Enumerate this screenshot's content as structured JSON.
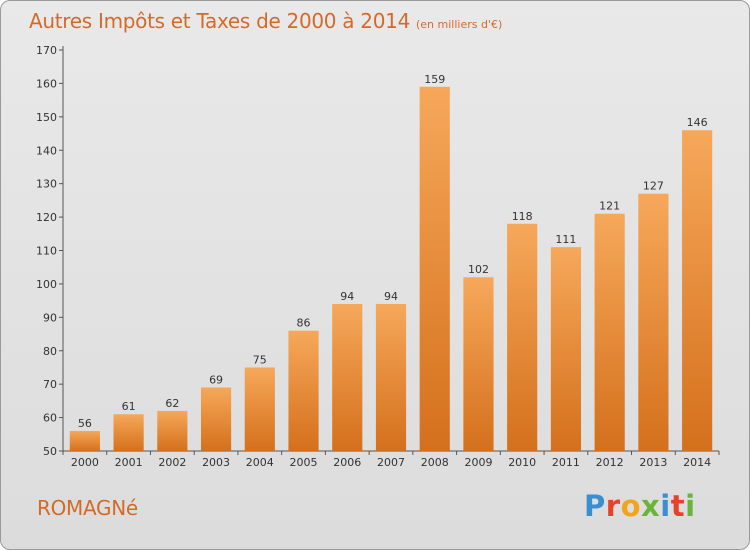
{
  "header": {
    "title": "Autres Impôts et Taxes de 2000 à 2014",
    "unit": "(en milliers d'€)"
  },
  "footer": {
    "commune": "ROMAGNé",
    "logo_letters": [
      "P",
      "r",
      "o",
      "x",
      "i",
      "t",
      "i"
    ]
  },
  "colors": {
    "bar_top": "#f6a85a",
    "bar_bottom": "#d4701c",
    "title": "#d46a2a"
  },
  "chart_data": {
    "type": "bar",
    "title": "Autres Impôts et Taxes de 2000 à 2014",
    "subtitle": "(en milliers d'€)",
    "xlabel": "",
    "ylabel": "",
    "categories": [
      "2000",
      "2001",
      "2002",
      "2003",
      "2004",
      "2005",
      "2006",
      "2007",
      "2008",
      "2009",
      "2010",
      "2011",
      "2012",
      "2013",
      "2014"
    ],
    "values": [
      56,
      61,
      62,
      69,
      75,
      86,
      94,
      94,
      159,
      102,
      118,
      111,
      121,
      127,
      146
    ],
    "ylim": [
      50,
      170
    ],
    "yticks": [
      50,
      60,
      70,
      80,
      90,
      100,
      110,
      120,
      130,
      140,
      150,
      160,
      170
    ],
    "grid": false,
    "legend": "none"
  }
}
